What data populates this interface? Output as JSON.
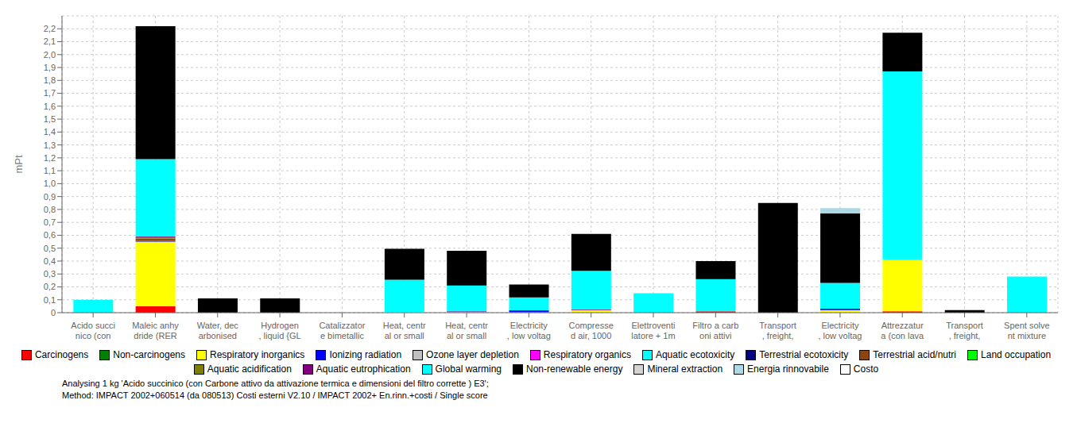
{
  "chart_data": {
    "type": "bar",
    "stacked": true,
    "categories": [
      "Acido succi\nnico (con",
      "Maleic anhy\ndride (RER",
      "Water, dec\narbonised",
      "Hydrogen\n, liquid {GL",
      "Catalizzator\ne bimetallic",
      "Heat, centr\nal or small",
      "Heat, centr\nal or small",
      "Electricity\n, low voltag",
      "Compresse\nd air, 1000",
      "Elettroventi\nlatore + 1m",
      "Filtro a carb\noni attivi",
      "Transport\n, freight,",
      "Electricity\n, low voltag",
      "Attrezzatur\na (con lava",
      "Transport\n, freight,",
      "Spent solve\nnt mixture"
    ],
    "series": [
      {
        "name": "Carcinogens",
        "color": "#FF0000",
        "values": [
          0.0,
          0.05,
          0.0,
          0.0,
          0.0,
          0.0,
          0.0,
          0.0,
          0.0,
          0.0,
          0.01,
          0.0,
          0.0,
          0.01,
          0.0,
          0.0
        ]
      },
      {
        "name": "Non-carcinogens",
        "color": "#008000",
        "values": [
          0.0,
          0.0,
          0.0,
          0.0,
          0.0,
          0.0,
          0.0,
          0.0,
          0.0,
          0.0,
          0.0,
          0.0,
          0.0,
          0.0,
          0.0,
          0.0
        ]
      },
      {
        "name": "Respiratory inorganics",
        "color": "#FFFF00",
        "values": [
          0.0,
          0.5,
          0.0,
          0.0,
          0.0,
          0.005,
          0.005,
          0.003,
          0.02,
          0.0,
          0.0,
          0.0,
          0.02,
          0.4,
          0.0,
          0.0
        ]
      },
      {
        "name": "Ionizing radiation",
        "color": "#0000FF",
        "values": [
          0.0,
          0.005,
          0.0,
          0.0,
          0.0,
          0.0,
          0.0,
          0.01,
          0.0,
          0.0,
          0.0,
          0.0,
          0.01,
          0.0,
          0.0,
          0.0
        ]
      },
      {
        "name": "Ozone layer depletion",
        "color": "#C0C0C0",
        "values": [
          0.0,
          0.0,
          0.0,
          0.0,
          0.0,
          0.0,
          0.0,
          0.0,
          0.0,
          0.0,
          0.0,
          0.0,
          0.0,
          0.0,
          0.0,
          0.0
        ]
      },
      {
        "name": "Respiratory organics",
        "color": "#FF00FF",
        "values": [
          0.0,
          0.0,
          0.0,
          0.0,
          0.0,
          0.0,
          0.0,
          0.0,
          0.0,
          0.0,
          0.0,
          0.0,
          0.0,
          0.0,
          0.0,
          0.0
        ]
      },
      {
        "name": "Aquatic ecotoxicity",
        "color": "#00FFFF",
        "values": [
          0.0,
          0.0,
          0.0,
          0.0,
          0.0,
          0.0,
          0.0,
          0.0,
          0.0,
          0.0,
          0.0,
          0.0,
          0.0,
          0.01,
          0.0,
          0.0
        ]
      },
      {
        "name": "Terrestrial ecotoxicity",
        "color": "#000080",
        "values": [
          0.0,
          0.0,
          0.0,
          0.0,
          0.0,
          0.0,
          0.0,
          0.0,
          0.0,
          0.0,
          0.0,
          0.0,
          0.0,
          0.0,
          0.0,
          0.0
        ]
      },
      {
        "name": "Terrestrial acid/nutri",
        "color": "#8B4513",
        "values": [
          0.0,
          0.02,
          0.0,
          0.0,
          0.0,
          0.0,
          0.0,
          0.0,
          0.0,
          0.0,
          0.0,
          0.0,
          0.0,
          0.0,
          0.0,
          0.0
        ]
      },
      {
        "name": "Land occupation",
        "color": "#00FF00",
        "values": [
          0.0,
          0.0,
          0.0,
          0.0,
          0.0,
          0.0,
          0.0,
          0.0,
          0.0,
          0.0,
          0.0,
          0.0,
          0.0,
          0.0,
          0.0,
          0.0
        ]
      },
      {
        "name": "Aquatic acidification",
        "color": "#808000",
        "values": [
          0.0,
          0.01,
          0.0,
          0.0,
          0.0,
          0.0,
          0.0,
          0.0,
          0.0,
          0.0,
          0.0,
          0.0,
          0.0,
          0.0,
          0.0,
          0.0
        ]
      },
      {
        "name": "Aquatic eutrophication",
        "color": "#800080",
        "values": [
          0.0,
          0.005,
          0.0,
          0.0,
          0.0,
          0.0,
          0.005,
          0.005,
          0.005,
          0.0,
          0.0,
          0.0,
          0.0,
          0.0,
          0.0,
          0.0
        ]
      },
      {
        "name": "Global warming",
        "color": "#00FFFF",
        "values": [
          0.1,
          0.6,
          0.0,
          0.0,
          0.0,
          0.25,
          0.2,
          0.1,
          0.3,
          0.15,
          0.25,
          0.0,
          0.2,
          1.45,
          0.0,
          0.28
        ]
      },
      {
        "name": "Non-renewable energy",
        "color": "#000000",
        "values": [
          0.0,
          1.03,
          0.11,
          0.11,
          0.0,
          0.24,
          0.27,
          0.1,
          0.285,
          0.0,
          0.14,
          0.85,
          0.54,
          0.3,
          0.02,
          0.0
        ]
      },
      {
        "name": "Mineral extraction",
        "color": "#D3D3D3",
        "values": [
          0.0,
          0.0,
          0.0,
          0.0,
          0.0,
          0.0,
          0.0,
          0.0,
          0.0,
          0.0,
          0.0,
          0.0,
          0.0,
          0.0,
          0.0,
          0.0
        ]
      },
      {
        "name": "Energia rinnovabile",
        "color": "#ADD8E6",
        "values": [
          0.0,
          0.0,
          0.0,
          0.0,
          0.0,
          0.0,
          0.0,
          0.0,
          0.0,
          0.0,
          0.0,
          0.0,
          0.04,
          0.0,
          0.0,
          0.0
        ]
      },
      {
        "name": "Costo",
        "color": "#FFFFFF",
        "values": [
          0.0,
          0.0,
          0.0,
          0.0,
          0.0,
          0.0,
          0.0,
          0.0,
          0.0,
          0.0,
          0.0,
          0.0,
          0.0,
          0.0,
          0.0,
          0.0
        ]
      }
    ],
    "ylabel": "mPt",
    "ylim": [
      0,
      2.3
    ],
    "yticks": [
      0,
      {
        "value": 0.1,
        "label": "0,1"
      },
      {
        "value": 0.2,
        "label": "0,2"
      },
      {
        "value": 0.3,
        "label": "0,3"
      },
      {
        "value": 0.4,
        "label": "0,4"
      },
      {
        "value": 0.5,
        "label": "0,5"
      },
      {
        "value": 0.6,
        "label": "0,6"
      },
      {
        "value": 0.7,
        "label": "0,7"
      },
      {
        "value": 0.8,
        "label": "0,8"
      },
      {
        "value": 0.9,
        "label": "0,9"
      },
      {
        "value": 1.0,
        "label": "1,0"
      },
      {
        "value": 1.1,
        "label": "1,1"
      },
      {
        "value": 1.2,
        "label": "1,2"
      },
      {
        "value": 1.3,
        "label": "1,3"
      },
      {
        "value": 1.4,
        "label": "1,4"
      },
      {
        "value": 1.5,
        "label": "1,5"
      },
      {
        "value": 1.6,
        "label": "1,6"
      },
      {
        "value": 1.7,
        "label": "1,7"
      },
      {
        "value": 1.8,
        "label": "1,8"
      },
      {
        "value": 1.9,
        "label": "1,9"
      },
      {
        "value": 2.0,
        "label": "2,0"
      },
      {
        "value": 2.1,
        "label": "2,1"
      },
      {
        "value": 2.2,
        "label": "2,2"
      }
    ],
    "grid": true,
    "legend": "bottom",
    "annotations": [
      "Analysing 1 kg 'Acido succinico (con Carbone attivo da attivazione termica e dimensioni del filtro corrette ) E3';",
      "Method: IMPACT 2002+060514 (da 080513) Costi esterni V2.10 / IMPACT 2002+ En.rinn.+costi / Single score"
    ]
  }
}
